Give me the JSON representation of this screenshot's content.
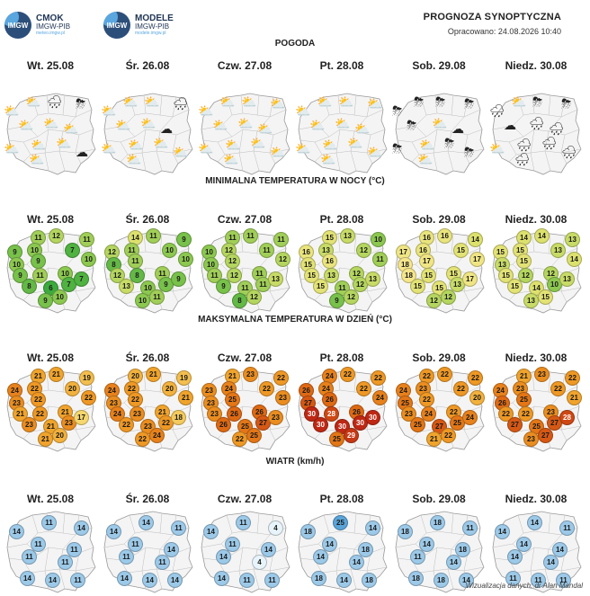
{
  "header": {
    "logo1": {
      "mark": "IMGW",
      "title": "CMOK",
      "sub": "IMGW-PIB",
      "url": "meteo.imgw.pl"
    },
    "logo2": {
      "mark": "IMGW",
      "title": "MODELE",
      "sub": "IMGW-PIB",
      "url": "modele.imgw.pl"
    },
    "title": "PROGNOZA SYNOPTYCZNA",
    "date": "Opracowano: 24.08.2026 10:40"
  },
  "days": [
    "Wt. 25.08",
    "Śr. 26.08",
    "Czw. 27.08",
    "Pt. 28.08",
    "Sob. 29.08",
    "Niedz. 30.08"
  ],
  "sections": {
    "weather": "POGODA",
    "tmin": "MINIMALNA TEMPERATURA W NOCY (°C)",
    "tmax": "MAKSYMALNA TEMPERATURA W DZIEŃ (°C)",
    "wind": "WIATR (km/h)"
  },
  "weather": [
    [
      "partly-cloudy",
      "partly-cloudy",
      "cloud-rain",
      "rain-storm",
      "partly-cloudy",
      "partly-cloudy",
      "partly-cloudy",
      "partly-cloudy",
      "partly-cloudy",
      "partly-cloudy",
      "partly-cloudy",
      "cloud"
    ],
    [
      "partly-cloudy",
      "partly-cloudy",
      "partly-cloudy",
      "cloud-rain",
      "partly-cloudy",
      "partly-cloudy",
      "cloud",
      "partly-cloudy",
      "partly-cloudy",
      "partly-cloudy",
      "partly-cloudy",
      "partly-cloudy"
    ],
    [
      "partly-cloudy",
      "partly-cloudy",
      "partly-cloudy",
      "partly-cloudy",
      "partly-cloudy",
      "partly-cloudy",
      "partly-cloudy",
      "partly-cloudy",
      "partly-cloudy",
      "partly-cloudy",
      "partly-cloudy",
      "partly-cloudy"
    ],
    [
      "partly-cloudy",
      "partly-cloudy",
      "partly-cloudy",
      "partly-cloudy",
      "partly-cloudy",
      "partly-cloudy",
      "partly-cloudy",
      "partly-cloudy",
      "partly-cloudy",
      "partly-cloudy",
      "partly-cloudy",
      "partly-cloudy"
    ],
    [
      "storm",
      "storm",
      "storm",
      "storm",
      "storm",
      "partly-cloudy",
      "cloud",
      "storm",
      "partly-cloudy",
      "storm",
      "partly-cloudy",
      "storm"
    ],
    [
      "cloud-rain",
      "partly-cloudy",
      "storm",
      "rain-storm",
      "cloud",
      "cloud-rain",
      "rain",
      "partly-cloudy",
      "cloud-rain",
      "rain",
      "rain",
      "cloud-rain"
    ]
  ],
  "tmin": [
    [
      11,
      12,
      11,
      9,
      10,
      7,
      10,
      9,
      10,
      9,
      11,
      10,
      8,
      6,
      7,
      7,
      10,
      9
    ],
    [
      14,
      11,
      9,
      12,
      11,
      10,
      8,
      11,
      10,
      12,
      8,
      11,
      13,
      10,
      9,
      9,
      11,
      10
    ],
    [
      11,
      11,
      11,
      10,
      12,
      11,
      10,
      12,
      12,
      11,
      12,
      11,
      9,
      11,
      11,
      13,
      12,
      8
    ],
    [
      15,
      13,
      10,
      16,
      13,
      12,
      15,
      16,
      11,
      15,
      13,
      12,
      15,
      11,
      12,
      13,
      12,
      9
    ],
    [
      16,
      16,
      14,
      17,
      16,
      15,
      18,
      17,
      17,
      18,
      15,
      15,
      15,
      15,
      13,
      17,
      12,
      12
    ],
    [
      14,
      14,
      13,
      15,
      15,
      13,
      13,
      15,
      14,
      15,
      12,
      12,
      15,
      14,
      10,
      13,
      15,
      13
    ]
  ],
  "tmax": [
    [
      21,
      21,
      19,
      24,
      22,
      20,
      23,
      22,
      22,
      21,
      22,
      21,
      23,
      21,
      23,
      17,
      20,
      21
    ],
    [
      20,
      21,
      19,
      24,
      22,
      20,
      23,
      22,
      21,
      24,
      23,
      21,
      22,
      23,
      22,
      18,
      24,
      22
    ],
    [
      21,
      23,
      22,
      23,
      24,
      22,
      23,
      25,
      23,
      23,
      26,
      26,
      26,
      25,
      27,
      23,
      25,
      22
    ],
    [
      24,
      22,
      22,
      26,
      24,
      22,
      27,
      26,
      24,
      30,
      28,
      26,
      30,
      30,
      30,
      30,
      29,
      25
    ],
    [
      22,
      22,
      22,
      24,
      23,
      22,
      25,
      22,
      20,
      23,
      24,
      22,
      25,
      27,
      25,
      24,
      22,
      21
    ],
    [
      21,
      23,
      22,
      24,
      23,
      22,
      26,
      25,
      21,
      22,
      22,
      23,
      27,
      25,
      27,
      28,
      27,
      23
    ]
  ],
  "wind": [
    [
      14,
      11,
      14,
      11,
      11,
      11,
      11,
      14,
      14,
      11
    ],
    [
      14,
      14,
      11,
      11,
      14,
      11,
      11,
      14,
      14,
      14
    ],
    [
      14,
      11,
      4,
      11,
      14,
      14,
      4,
      14,
      11,
      11
    ],
    [
      18,
      25,
      14,
      14,
      18,
      14,
      14,
      18,
      14,
      18
    ],
    [
      18,
      18,
      11,
      14,
      18,
      11,
      14,
      18,
      18,
      14
    ],
    [
      14,
      14,
      11,
      14,
      14,
      14,
      14,
      11,
      11,
      11
    ]
  ],
  "footer": "Wizualizacja danych: dr Alan Mandal"
}
